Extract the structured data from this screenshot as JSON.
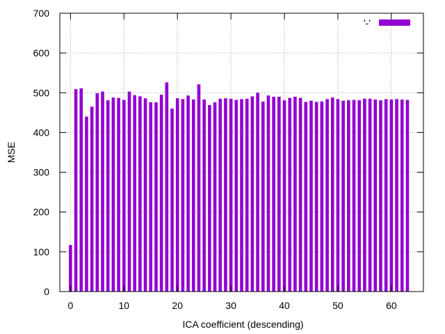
{
  "chart_data": {
    "type": "bar",
    "title": "",
    "xlabel": "ICA coefficient (descending)",
    "ylabel": "MSE",
    "xlim": [
      -2,
      66
    ],
    "ylim": [
      0,
      700
    ],
    "x_ticks": [
      0,
      10,
      20,
      30,
      40,
      50,
      60
    ],
    "y_ticks": [
      0,
      100,
      200,
      300,
      400,
      500,
      600,
      700
    ],
    "grid": true,
    "legend_position": "top-right",
    "series": [
      {
        "name": "'-'",
        "color": "#9400d3",
        "x": [
          0,
          1,
          2,
          3,
          4,
          5,
          6,
          7,
          8,
          9,
          10,
          11,
          12,
          13,
          14,
          15,
          16,
          17,
          18,
          19,
          20,
          21,
          22,
          23,
          24,
          25,
          26,
          27,
          28,
          29,
          30,
          31,
          32,
          33,
          34,
          35,
          36,
          37,
          38,
          39,
          40,
          41,
          42,
          43,
          44,
          45,
          46,
          47,
          48,
          49,
          50,
          51,
          52,
          53,
          54,
          55,
          56,
          57,
          58,
          59,
          60,
          61,
          62,
          63
        ],
        "values": [
          117,
          509,
          511,
          440,
          465,
          499,
          503,
          481,
          488,
          487,
          482,
          503,
          494,
          491,
          486,
          476,
          476,
          495,
          526,
          460,
          486,
          484,
          493,
          483,
          521,
          483,
          469,
          476,
          485,
          486,
          485,
          482,
          484,
          485,
          491,
          500,
          478,
          493,
          490,
          490,
          481,
          487,
          490,
          487,
          477,
          480,
          477,
          478,
          484,
          488,
          484,
          480,
          481,
          482,
          481,
          485,
          485,
          483,
          481,
          484,
          483,
          484,
          483,
          482
        ]
      }
    ]
  }
}
